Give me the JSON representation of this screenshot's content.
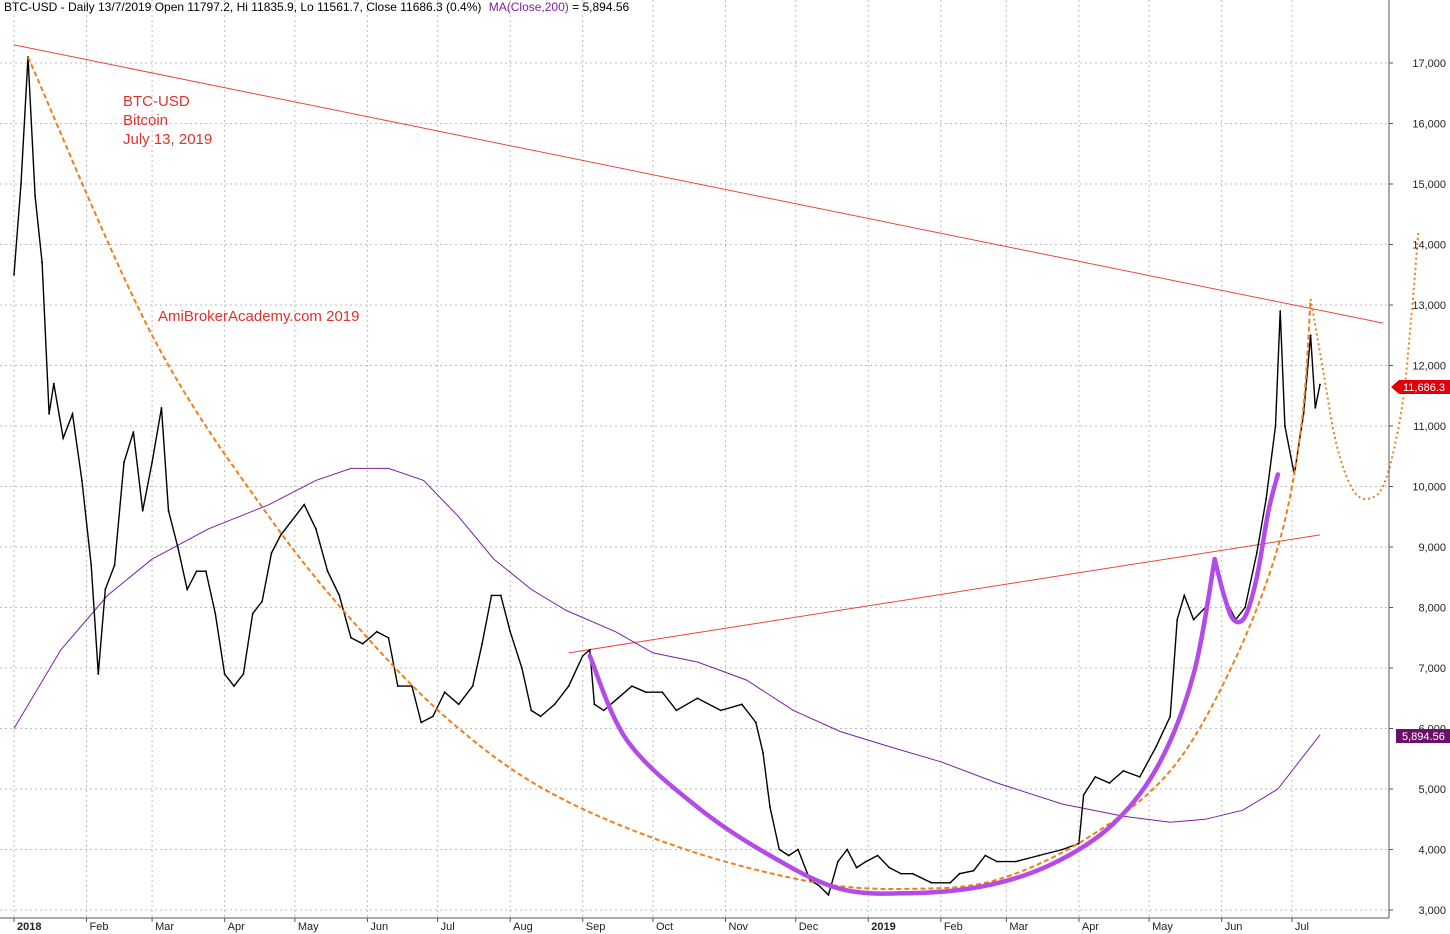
{
  "header": {
    "symbol_line": "BTC-USD - Daily 13/7/2019 Open 11797.2, Hi 11835.9, Lo 11561.7, Close 11686.3 (0.4%)",
    "ma_label": "MA(Close,200)",
    "ma_value": " = 5,894.56"
  },
  "annotation": {
    "line1": "BTC-USD",
    "line2": "Bitcoin",
    "line3": "July 13, 2019"
  },
  "watermark": "AmiBrokerAcademy.com  2019",
  "tags": {
    "close": "11,686.3",
    "ma": "5,894.56"
  },
  "colors": {
    "price": "#000000",
    "ma": "#7b1fa2",
    "trendline": "#e8473f",
    "cup_dashed": "#f07f1a",
    "cup_magenta": "#b44be8",
    "grid": "#bdbdbd",
    "tag_close": "#e0000a",
    "tag_ma": "#6a0f6a"
  },
  "chart_data": {
    "type": "line",
    "title": "BTC-USD - Daily 13/7/2019",
    "ylim": [
      2950,
      17700
    ],
    "y_ticks": [
      3000,
      4000,
      5000,
      6000,
      7000,
      8000,
      9000,
      10000,
      11000,
      12000,
      13000,
      14000,
      15000,
      16000,
      17000
    ],
    "y_tick_labels": [
      "3,000",
      "4,000",
      "5,000",
      "6,000",
      "7,000",
      "8,000",
      "9,000",
      "10,000",
      "11,000",
      "12,000",
      "13,000",
      "14,000",
      "15,000",
      "16,000",
      "17,000"
    ],
    "x_tick_labels": [
      {
        "label": "2018",
        "bold": true
      },
      {
        "label": "Feb"
      },
      {
        "label": "Mar"
      },
      {
        "label": "Apr"
      },
      {
        "label": "May"
      },
      {
        "label": "Jun"
      },
      {
        "label": "Jul"
      },
      {
        "label": "Aug"
      },
      {
        "label": "Sep"
      },
      {
        "label": "Oct"
      },
      {
        "label": "Nov"
      },
      {
        "label": "Dec"
      },
      {
        "label": "2019",
        "bold": true
      },
      {
        "label": "Feb"
      },
      {
        "label": "Mar"
      },
      {
        "label": "Apr"
      },
      {
        "label": "May"
      },
      {
        "label": "Jun"
      },
      {
        "label": "Jul"
      }
    ],
    "grid": true,
    "series": [
      {
        "name": "BTC-USD",
        "kind": "price",
        "points": [
          [
            "2018-01-01",
            13500
          ],
          [
            "2018-01-04",
            15000
          ],
          [
            "2018-01-07",
            17100
          ],
          [
            "2018-01-10",
            14800
          ],
          [
            "2018-01-13",
            13700
          ],
          [
            "2018-01-16",
            11200
          ],
          [
            "2018-01-18",
            11700
          ],
          [
            "2018-01-22",
            10800
          ],
          [
            "2018-01-26",
            11200
          ],
          [
            "2018-01-30",
            10100
          ],
          [
            "2018-02-03",
            8700
          ],
          [
            "2018-02-06",
            6900
          ],
          [
            "2018-02-09",
            8300
          ],
          [
            "2018-02-13",
            8700
          ],
          [
            "2018-02-17",
            10400
          ],
          [
            "2018-02-21",
            10900
          ],
          [
            "2018-02-25",
            9600
          ],
          [
            "2018-03-01",
            10400
          ],
          [
            "2018-03-05",
            11300
          ],
          [
            "2018-03-08",
            9600
          ],
          [
            "2018-03-12",
            9000
          ],
          [
            "2018-03-16",
            8300
          ],
          [
            "2018-03-20",
            8600
          ],
          [
            "2018-03-24",
            8600
          ],
          [
            "2018-03-28",
            7900
          ],
          [
            "2018-04-01",
            6900
          ],
          [
            "2018-04-05",
            6700
          ],
          [
            "2018-04-09",
            6900
          ],
          [
            "2018-04-13",
            7900
          ],
          [
            "2018-04-17",
            8100
          ],
          [
            "2018-04-21",
            8900
          ],
          [
            "2018-04-25",
            9200
          ],
          [
            "2018-04-29",
            9400
          ],
          [
            "2018-05-05",
            9700
          ],
          [
            "2018-05-10",
            9300
          ],
          [
            "2018-05-15",
            8600
          ],
          [
            "2018-05-20",
            8200
          ],
          [
            "2018-05-25",
            7500
          ],
          [
            "2018-05-30",
            7400
          ],
          [
            "2018-06-05",
            7600
          ],
          [
            "2018-06-10",
            7500
          ],
          [
            "2018-06-14",
            6700
          ],
          [
            "2018-06-20",
            6700
          ],
          [
            "2018-06-24",
            6100
          ],
          [
            "2018-06-29",
            6200
          ],
          [
            "2018-07-04",
            6600
          ],
          [
            "2018-07-10",
            6400
          ],
          [
            "2018-07-16",
            6700
          ],
          [
            "2018-07-20",
            7400
          ],
          [
            "2018-07-24",
            8200
          ],
          [
            "2018-07-28",
            8200
          ],
          [
            "2018-08-01",
            7600
          ],
          [
            "2018-08-06",
            7000
          ],
          [
            "2018-08-10",
            6300
          ],
          [
            "2018-08-14",
            6200
          ],
          [
            "2018-08-20",
            6400
          ],
          [
            "2018-08-26",
            6700
          ],
          [
            "2018-09-01",
            7200
          ],
          [
            "2018-09-04",
            7300
          ],
          [
            "2018-09-06",
            6400
          ],
          [
            "2018-09-10",
            6300
          ],
          [
            "2018-09-16",
            6500
          ],
          [
            "2018-09-22",
            6700
          ],
          [
            "2018-09-28",
            6600
          ],
          [
            "2018-10-05",
            6600
          ],
          [
            "2018-10-11",
            6300
          ],
          [
            "2018-10-20",
            6500
          ],
          [
            "2018-10-30",
            6300
          ],
          [
            "2018-11-08",
            6400
          ],
          [
            "2018-11-14",
            6100
          ],
          [
            "2018-11-17",
            5600
          ],
          [
            "2018-11-20",
            4700
          ],
          [
            "2018-11-24",
            4000
          ],
          [
            "2018-11-28",
            3900
          ],
          [
            "2018-12-02",
            4000
          ],
          [
            "2018-12-07",
            3500
          ],
          [
            "2018-12-11",
            3400
          ],
          [
            "2018-12-15",
            3250
          ],
          [
            "2018-12-19",
            3800
          ],
          [
            "2018-12-23",
            4000
          ],
          [
            "2018-12-27",
            3700
          ],
          [
            "2018-12-31",
            3800
          ],
          [
            "2019-01-05",
            3900
          ],
          [
            "2019-01-10",
            3700
          ],
          [
            "2019-01-15",
            3600
          ],
          [
            "2019-01-20",
            3600
          ],
          [
            "2019-01-28",
            3450
          ],
          [
            "2019-02-05",
            3450
          ],
          [
            "2019-02-09",
            3600
          ],
          [
            "2019-02-15",
            3650
          ],
          [
            "2019-02-20",
            3900
          ],
          [
            "2019-02-25",
            3800
          ],
          [
            "2019-03-05",
            3800
          ],
          [
            "2019-03-15",
            3900
          ],
          [
            "2019-03-25",
            4000
          ],
          [
            "2019-04-01",
            4100
          ],
          [
            "2019-04-03",
            4900
          ],
          [
            "2019-04-08",
            5200
          ],
          [
            "2019-04-14",
            5100
          ],
          [
            "2019-04-20",
            5300
          ],
          [
            "2019-04-27",
            5200
          ],
          [
            "2019-05-04",
            5700
          ],
          [
            "2019-05-10",
            6200
          ],
          [
            "2019-05-13",
            7800
          ],
          [
            "2019-05-16",
            8200
          ],
          [
            "2019-05-20",
            7800
          ],
          [
            "2019-05-25",
            8000
          ],
          [
            "2019-05-29",
            8700
          ],
          [
            "2019-06-03",
            8100
          ],
          [
            "2019-06-07",
            7800
          ],
          [
            "2019-06-11",
            8000
          ],
          [
            "2019-06-16",
            8900
          ],
          [
            "2019-06-20",
            9800
          ],
          [
            "2019-06-24",
            11000
          ],
          [
            "2019-06-26",
            12900
          ],
          [
            "2019-06-28",
            11000
          ],
          [
            "2019-07-02",
            10200
          ],
          [
            "2019-07-06",
            11200
          ],
          [
            "2019-07-09",
            12500
          ],
          [
            "2019-07-11",
            11300
          ],
          [
            "2019-07-13",
            11686.3
          ]
        ]
      },
      {
        "name": "MA(Close,200)",
        "kind": "ma",
        "points": [
          [
            "2018-01-01",
            6000
          ],
          [
            "2018-01-21",
            7300
          ],
          [
            "2018-02-10",
            8200
          ],
          [
            "2018-03-01",
            8800
          ],
          [
            "2018-03-25",
            9300
          ],
          [
            "2018-04-20",
            9700
          ],
          [
            "2018-05-10",
            10100
          ],
          [
            "2018-05-25",
            10300
          ],
          [
            "2018-06-10",
            10300
          ],
          [
            "2018-06-25",
            10100
          ],
          [
            "2018-07-10",
            9500
          ],
          [
            "2018-07-25",
            8800
          ],
          [
            "2018-08-10",
            8300
          ],
          [
            "2018-08-25",
            7950
          ],
          [
            "2018-09-15",
            7600
          ],
          [
            "2018-10-01",
            7250
          ],
          [
            "2018-10-20",
            7100
          ],
          [
            "2018-11-10",
            6800
          ],
          [
            "2018-11-30",
            6300
          ],
          [
            "2018-12-20",
            5950
          ],
          [
            "2019-01-10",
            5700
          ],
          [
            "2019-02-01",
            5450
          ],
          [
            "2019-02-25",
            5100
          ],
          [
            "2019-03-25",
            4750
          ],
          [
            "2019-04-20",
            4550
          ],
          [
            "2019-05-10",
            4450
          ],
          [
            "2019-05-25",
            4500
          ],
          [
            "2019-06-10",
            4650
          ],
          [
            "2019-06-25",
            5000
          ],
          [
            "2019-07-05",
            5500
          ],
          [
            "2019-07-13",
            5894.56
          ]
        ]
      }
    ],
    "trendlines": [
      {
        "kind": "resistance",
        "from": [
          "2018-01-01",
          17300
        ],
        "to": [
          "2019-08-09",
          12700
        ]
      },
      {
        "kind": "neckline",
        "from": [
          "2018-08-26",
          7250
        ],
        "to": [
          "2019-07-13",
          9200
        ]
      }
    ],
    "cups": [
      {
        "style": "dashed",
        "points": [
          [
            "2018-01-07",
            17100
          ],
          [
            "2018-03-01",
            12500
          ],
          [
            "2018-04-20",
            9500
          ],
          [
            "2018-06-01",
            7500
          ],
          [
            "2018-07-10",
            6000
          ],
          [
            "2018-08-20",
            4900
          ],
          [
            "2018-10-15",
            4000
          ],
          [
            "2018-12-10",
            3450
          ],
          [
            "2019-01-20",
            3350
          ],
          [
            "2019-02-25",
            3500
          ],
          [
            "2019-04-05",
            4200
          ],
          [
            "2019-05-10",
            5300
          ],
          [
            "2019-06-05",
            7000
          ],
          [
            "2019-06-25",
            9000
          ],
          [
            "2019-07-05",
            11000
          ],
          [
            "2019-07-09",
            13100
          ]
        ]
      },
      {
        "style": "dashed-forecast",
        "points": [
          [
            "2019-07-09",
            13100
          ],
          [
            "2019-07-14",
            12000
          ],
          [
            "2019-07-20",
            10700
          ],
          [
            "2019-07-27",
            9950
          ],
          [
            "2019-08-03",
            9800
          ],
          [
            "2019-08-10",
            10100
          ],
          [
            "2019-08-17",
            11300
          ],
          [
            "2019-08-21",
            12800
          ],
          [
            "2019-08-24",
            14200
          ]
        ]
      },
      {
        "style": "solid",
        "points": [
          [
            "2018-09-04",
            7200
          ],
          [
            "2018-09-20",
            5800
          ],
          [
            "2018-10-20",
            4700
          ],
          [
            "2018-11-20",
            3900
          ],
          [
            "2018-12-20",
            3350
          ],
          [
            "2019-01-20",
            3280
          ],
          [
            "2019-02-20",
            3400
          ],
          [
            "2019-03-20",
            3750
          ],
          [
            "2019-04-15",
            4400
          ],
          [
            "2019-05-05",
            5400
          ],
          [
            "2019-05-20",
            6900
          ],
          [
            "2019-05-29",
            8800
          ]
        ]
      },
      {
        "style": "solid",
        "points": [
          [
            "2019-05-29",
            8800
          ],
          [
            "2019-06-02",
            8200
          ],
          [
            "2019-06-06",
            7800
          ],
          [
            "2019-06-11",
            7850
          ],
          [
            "2019-06-16",
            8500
          ],
          [
            "2019-06-21",
            9600
          ],
          [
            "2019-06-25",
            10200
          ]
        ]
      }
    ]
  }
}
